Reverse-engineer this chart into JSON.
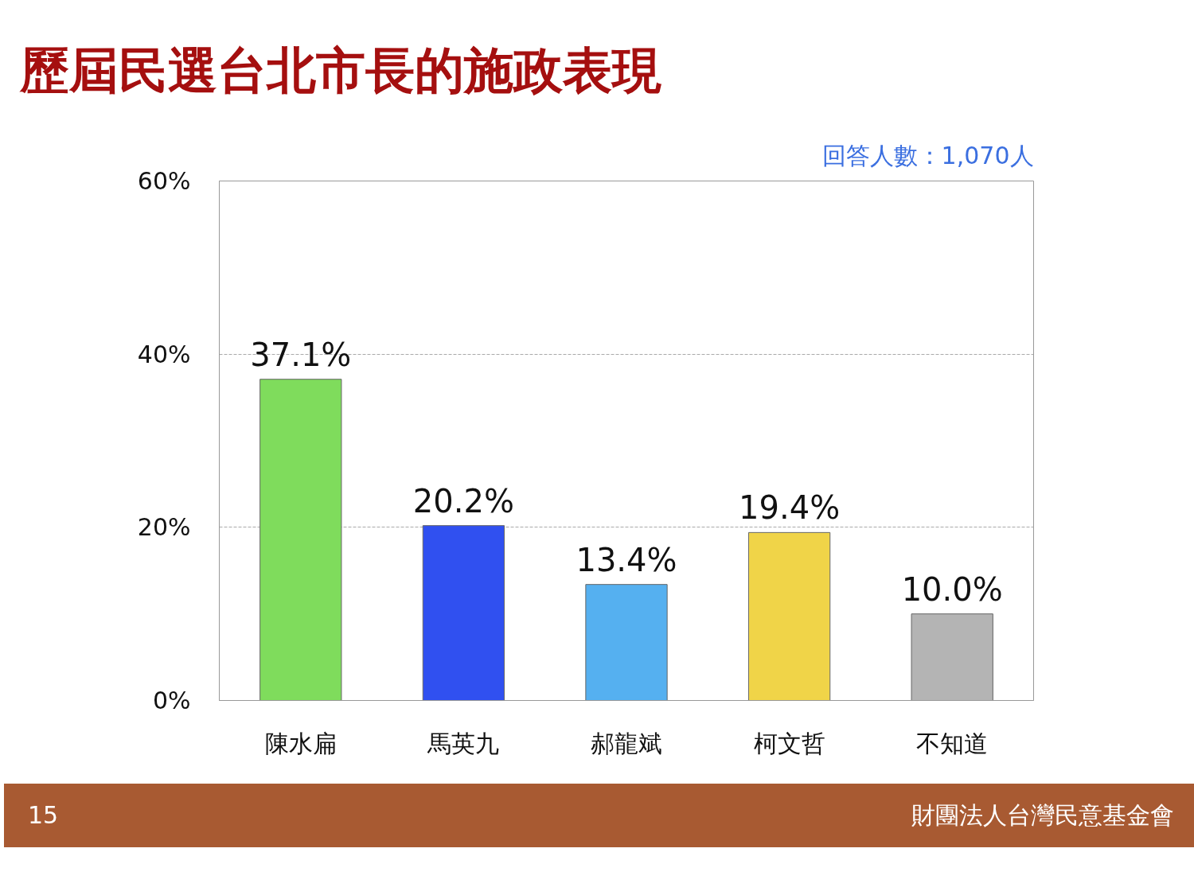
{
  "chart_data": {
    "type": "bar",
    "title": "歷屆民選台北市長的施政表現",
    "categories": [
      "陳水扁",
      "馬英九",
      "郝龍斌",
      "柯文哲",
      "不知道"
    ],
    "values": [
      37.1,
      20.2,
      13.4,
      19.4,
      10.0
    ],
    "colors": [
      "#7fdc5c",
      "#3050f0",
      "#55b0f0",
      "#f0d448",
      "#b4b4b4"
    ],
    "value_labels": [
      "37.1%",
      "20.2%",
      "13.4%",
      "19.4%",
      "10.0%"
    ],
    "ylim": [
      0,
      60
    ],
    "yticks": [
      {
        "value": 0,
        "label": "0%"
      },
      {
        "value": 20,
        "label": "20%"
      },
      {
        "value": 40,
        "label": "40%"
      },
      {
        "value": 60,
        "label": "60%"
      }
    ],
    "grid": "y",
    "annotations": [
      "回答人數：1,070人",
      "15",
      "財團法人台灣民意基金會"
    ]
  }
}
